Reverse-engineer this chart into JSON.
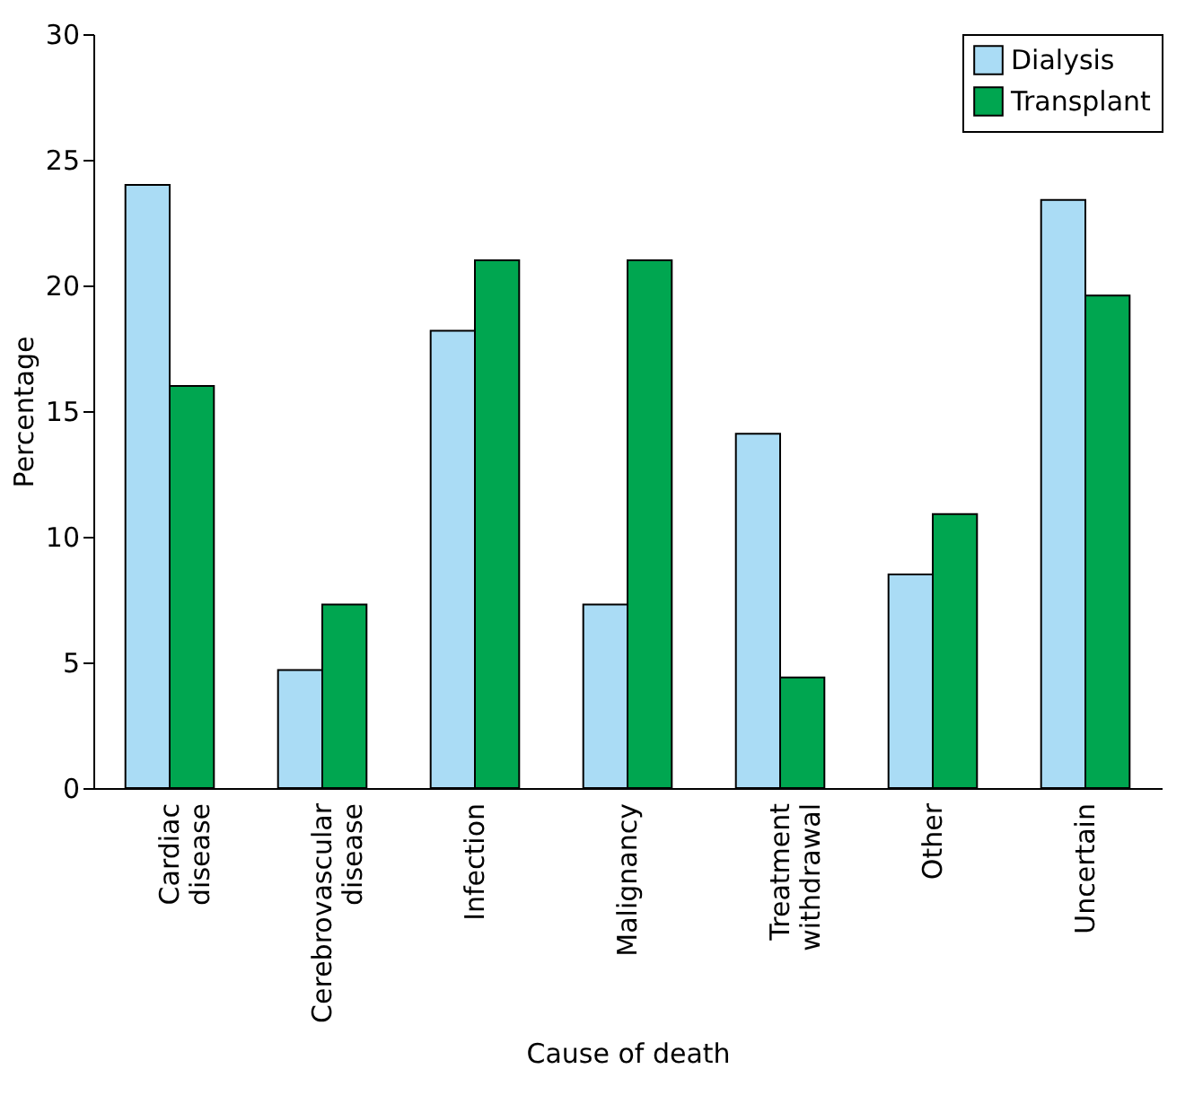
{
  "chart_data": {
    "type": "bar",
    "xlabel": "Cause of death",
    "ylabel": "Percentage",
    "categories": [
      "Cardiac disease",
      "Cerebrovascular disease",
      "Infection",
      "Malignancy",
      "Treatment withdrawal",
      "Other",
      "Uncertain"
    ],
    "series": [
      {
        "name": "Dialysis",
        "color": "#aadcf5",
        "values": [
          24,
          4.7,
          18.2,
          7.3,
          14.1,
          8.5,
          23.4
        ]
      },
      {
        "name": "Transplant",
        "color": "#00a650",
        "values": [
          16,
          7.3,
          21,
          21,
          4.4,
          10.9,
          19.6
        ]
      }
    ],
    "ylim": [
      0,
      30
    ],
    "yticks": [
      0,
      5,
      10,
      15,
      20,
      25,
      30
    ],
    "grid": false,
    "legend": "top right"
  }
}
